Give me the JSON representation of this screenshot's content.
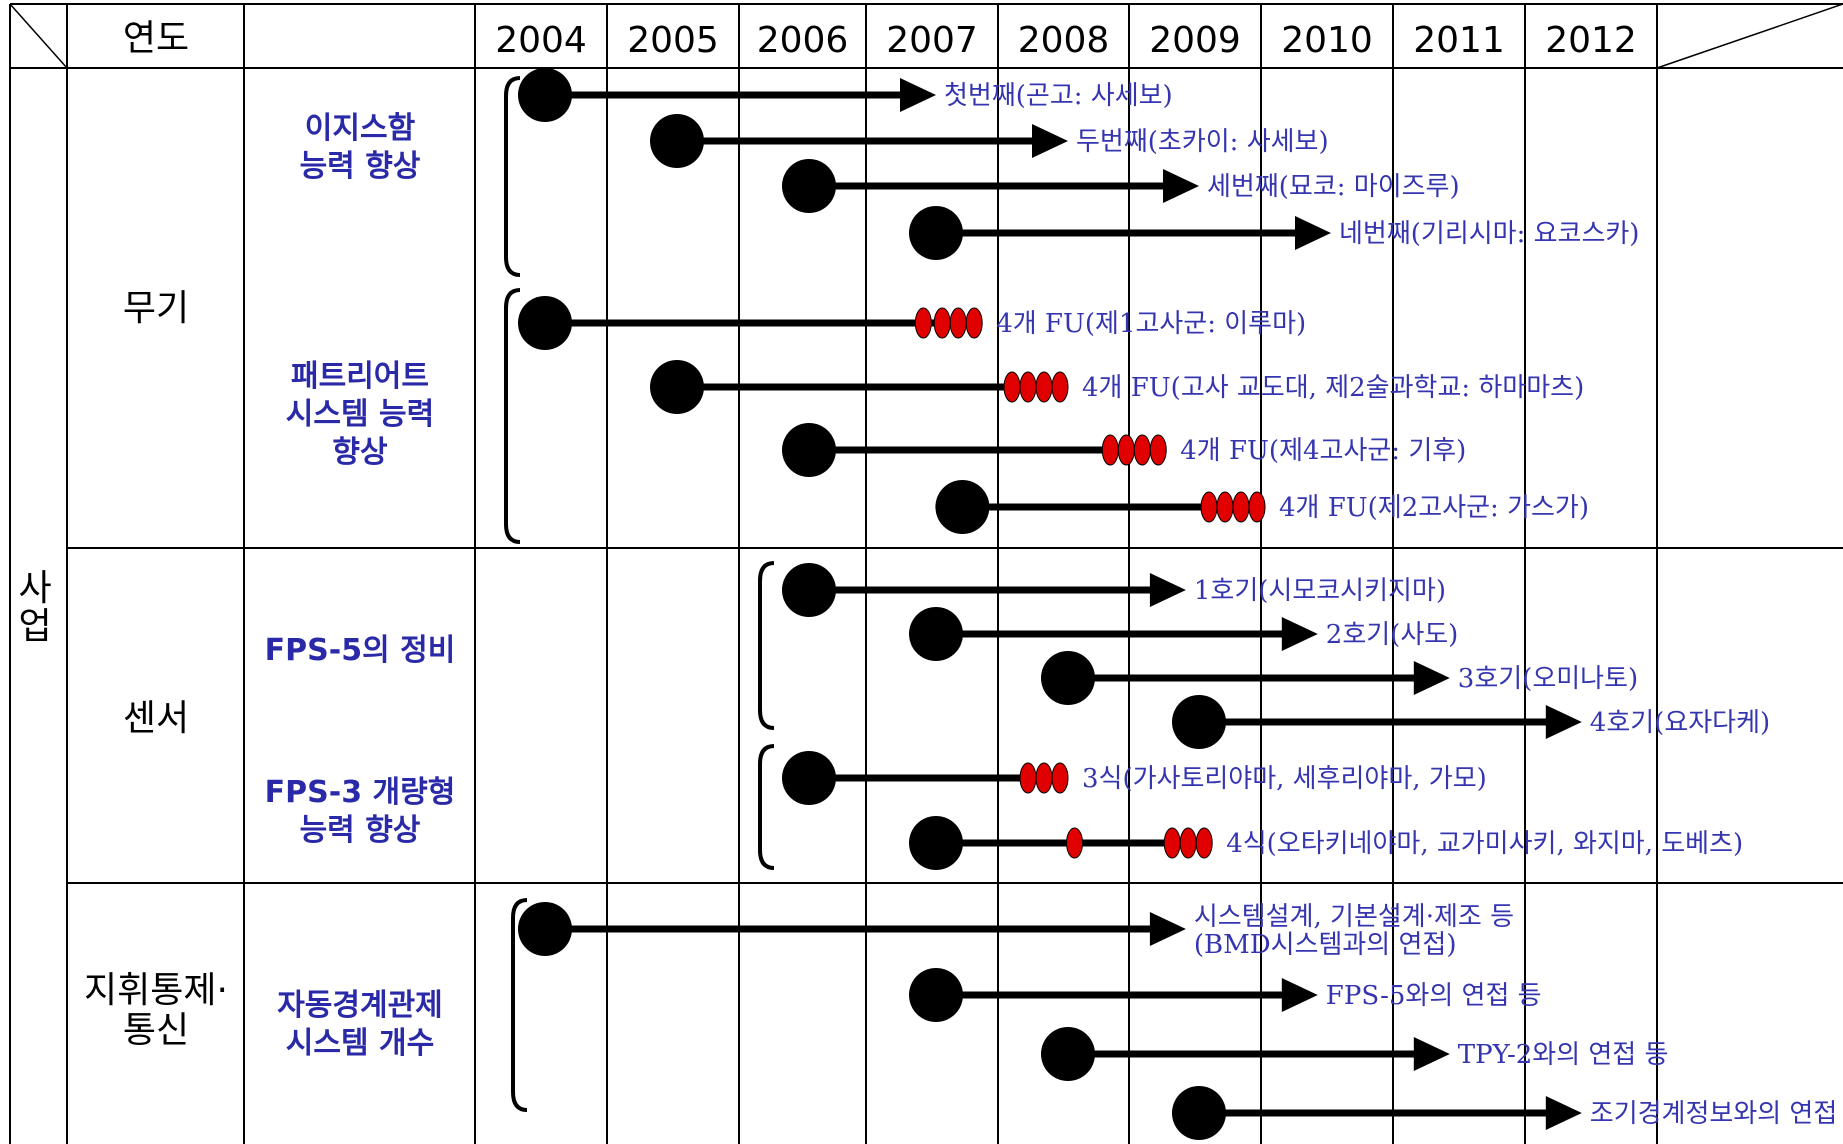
{
  "header": {
    "year_label": "연도"
  },
  "years": [
    "2004",
    "2005",
    "2006",
    "2007",
    "2008",
    "2009",
    "2010",
    "2011",
    "2012"
  ],
  "side_label": [
    "사",
    "업"
  ],
  "categories": [
    {
      "name": [
        "무기"
      ]
    },
    {
      "name": [
        "센서"
      ]
    },
    {
      "name": [
        "지휘통제·",
        "통신"
      ]
    }
  ],
  "projects": [
    {
      "name": [
        "이지스함",
        "능력 향상"
      ]
    },
    {
      "name": [
        "패트리어트",
        "시스템 능력",
        "향상"
      ]
    },
    {
      "name": [
        "FPS-5의 정비"
      ]
    },
    {
      "name": [
        "FPS-3 개량형",
        "능력 향상"
      ]
    },
    {
      "name": [
        "자동경계관제",
        "시스템 개수"
      ]
    }
  ],
  "timelines": [
    {
      "start": 2004.0,
      "end": 2007.0,
      "style": "arrow",
      "label": [
        "첫번째(곤고: 사세보)"
      ]
    },
    {
      "start": 2005.0,
      "end": 2008.0,
      "style": "arrow",
      "label": [
        "두번째(초카이: 사세보)"
      ]
    },
    {
      "start": 2006.0,
      "end": 2009.0,
      "style": "arrow",
      "label": [
        "세번째(묘코: 마이즈루)"
      ]
    },
    {
      "start": 2007.0,
      "end": 2010.0,
      "style": "arrow",
      "label": [
        "네번째(기리시마: 요코스카)"
      ]
    },
    {
      "start": 2004.0,
      "end": 2007.35,
      "style": "units",
      "single_marker": 2006.9,
      "units": 3,
      "label": [
        "4개 FU(제1고사군: 이루마)"
      ]
    },
    {
      "start": 2005.0,
      "end": 2008.0,
      "style": "units",
      "units": 4,
      "label": [
        "4개 FU(고사 교도대, 제2술과학교: 하마마츠)"
      ]
    },
    {
      "start": 2006.0,
      "end": 2008.75,
      "style": "units",
      "units": 4,
      "label": [
        "4개 FU(제4고사군: 기후)"
      ]
    },
    {
      "start": 2007.2,
      "end": 2009.5,
      "style": "units",
      "units": 4,
      "label": [
        "4개 FU(제2고사군: 가스가)"
      ]
    },
    {
      "start": 2006.0,
      "end": 2008.9,
      "style": "arrow",
      "label": [
        "1호기(시모코시키지마)"
      ]
    },
    {
      "start": 2007.0,
      "end": 2009.9,
      "style": "arrow",
      "label": [
        "2호기(사도)"
      ]
    },
    {
      "start": 2008.0,
      "end": 2010.9,
      "style": "arrow",
      "label": [
        "3호기(오미나토)"
      ]
    },
    {
      "start": 2009.0,
      "end": 2011.9,
      "style": "arrow",
      "label": [
        "4호기(요자다케)"
      ]
    },
    {
      "start": 2006.0,
      "end": 2008.0,
      "style": "units",
      "units": 3,
      "label": [
        "3식(가사토리야마, 세후리야마, 가모)"
      ]
    },
    {
      "start": 2007.0,
      "end": 2009.1,
      "style": "units",
      "single_marker": 2008.05,
      "units": 3,
      "label": [
        "4식(오타키네야마, 교가미사키, 와지마, 도베츠)"
      ]
    },
    {
      "start": 2004.0,
      "end": 2008.9,
      "style": "arrow",
      "label": [
        "시스템설계, 기본설계·제조 등",
        "(BMD시스템과의 연접)"
      ]
    },
    {
      "start": 2007.0,
      "end": 2009.9,
      "style": "arrow",
      "label": [
        "FPS-5와의 연접 등"
      ]
    },
    {
      "start": 2008.0,
      "end": 2010.9,
      "style": "arrow",
      "label": [
        "TPY-2와의 연접 등"
      ]
    },
    {
      "start": 2009.0,
      "end": 2011.9,
      "style": "arrow",
      "label": [
        "조기경계정보와의 연접 등"
      ]
    }
  ],
  "colors": {
    "line": "#000000",
    "marker": "#e00000",
    "label": "#3535b0",
    "project": "#2a2aa8"
  }
}
